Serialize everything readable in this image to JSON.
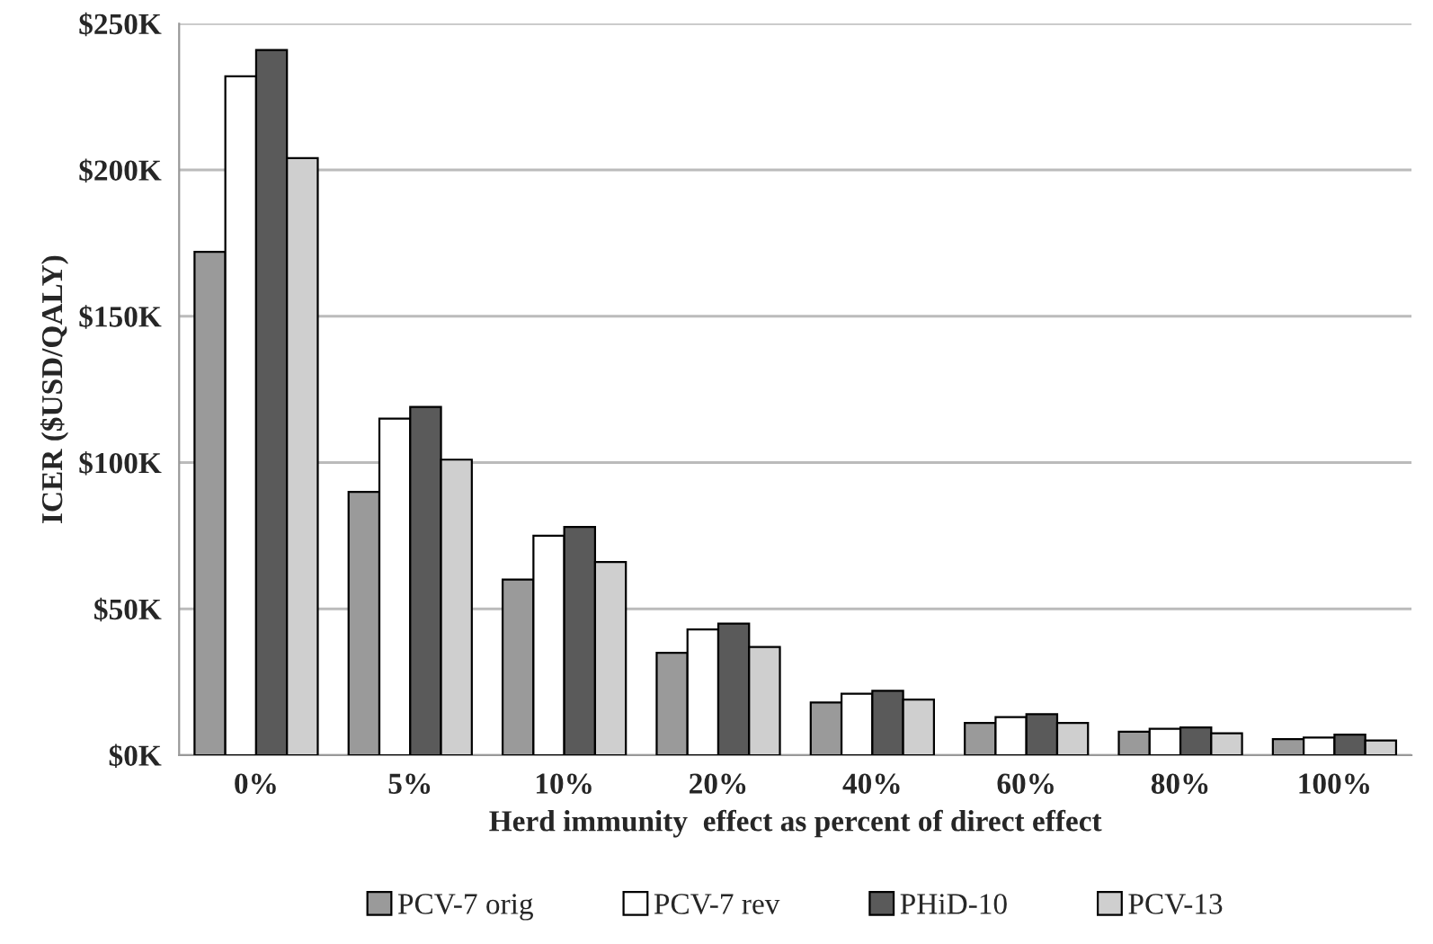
{
  "chart_data": {
    "type": "bar",
    "xlabel": "Herd immunity  effect as percent of direct effect",
    "ylabel": "ICER ($USD/QALY)",
    "categories": [
      "0%",
      "5%",
      "10%",
      "20%",
      "40%",
      "60%",
      "80%",
      "100%"
    ],
    "series": [
      {
        "name": "PCV-7 orig",
        "color": "#9a9a9a",
        "values": [
          172,
          90,
          60,
          35,
          18,
          11,
          8,
          5.5
        ]
      },
      {
        "name": "PCV-7 rev",
        "color": "#ffffff",
        "values": [
          232,
          115,
          75,
          43,
          21,
          13,
          9,
          6
        ]
      },
      {
        "name": "PHiD-10",
        "color": "#5a5a5a",
        "values": [
          241,
          119,
          78,
          45,
          22,
          14,
          9.5,
          7
        ]
      },
      {
        "name": "PCV-13",
        "color": "#cfcfcf",
        "values": [
          204,
          101,
          66,
          37,
          19,
          11,
          7.5,
          5
        ]
      }
    ],
    "ylim": [
      0,
      250
    ],
    "yticks": [
      {
        "value": 0,
        "label": "$0K"
      },
      {
        "value": 50,
        "label": "$50K"
      },
      {
        "value": 100,
        "label": "$100K"
      },
      {
        "value": 150,
        "label": "$150K"
      },
      {
        "value": 200,
        "label": "$200K"
      },
      {
        "value": 250,
        "label": "$250K"
      }
    ],
    "grid": "y",
    "legend": "bottom"
  }
}
